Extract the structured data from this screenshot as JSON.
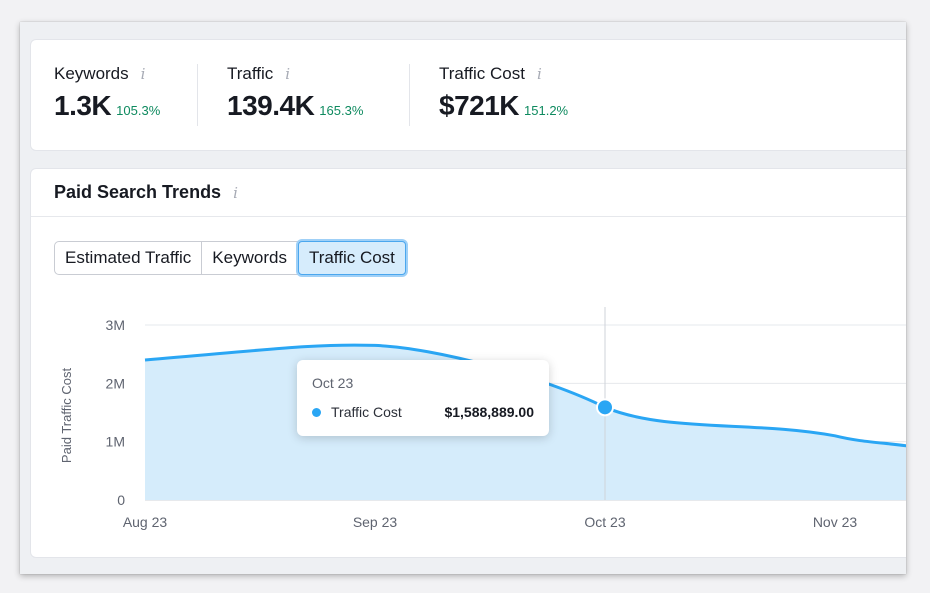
{
  "stats": [
    {
      "label": "Keywords",
      "value": "1.3K",
      "change": "105.3%"
    },
    {
      "label": "Traffic",
      "value": "139.4K",
      "change": "165.3%"
    },
    {
      "label": "Traffic Cost",
      "value": "$721K",
      "change": "151.2%"
    }
  ],
  "info_icon_glyph": "i",
  "trends": {
    "title": "Paid Search Trends",
    "tabs": [
      {
        "label": "Estimated Traffic",
        "active": false
      },
      {
        "label": "Keywords",
        "active": false
      },
      {
        "label": "Traffic Cost",
        "active": true
      }
    ]
  },
  "tooltip": {
    "date": "Oct 23",
    "series_label": "Traffic Cost",
    "value": "$1,588,889.00"
  },
  "colors": {
    "accent": "#2aa6f4",
    "area_fill": "#d5ecfb",
    "positive_change": "#0e8a5f"
  },
  "chart_data": {
    "type": "area",
    "ylabel": "Paid Traffic Cost",
    "xlabel": "",
    "x_ticks": [
      "Aug 23",
      "Sep 23",
      "Oct 23",
      "Nov 23"
    ],
    "y_ticks": [
      "0",
      "1M",
      "2M",
      "3M"
    ],
    "ylim": [
      0,
      3000000
    ],
    "grid": true,
    "series": [
      {
        "x": [
          "Aug 23",
          "Sep 23",
          "Oct 23",
          "Nov 23",
          "Nov 23 + 2w"
        ],
        "values": [
          2400000,
          2650000,
          1588889,
          1100000,
          750000
        ]
      }
    ],
    "highlight": {
      "x": "Oct 23",
      "value": 1588889
    }
  }
}
